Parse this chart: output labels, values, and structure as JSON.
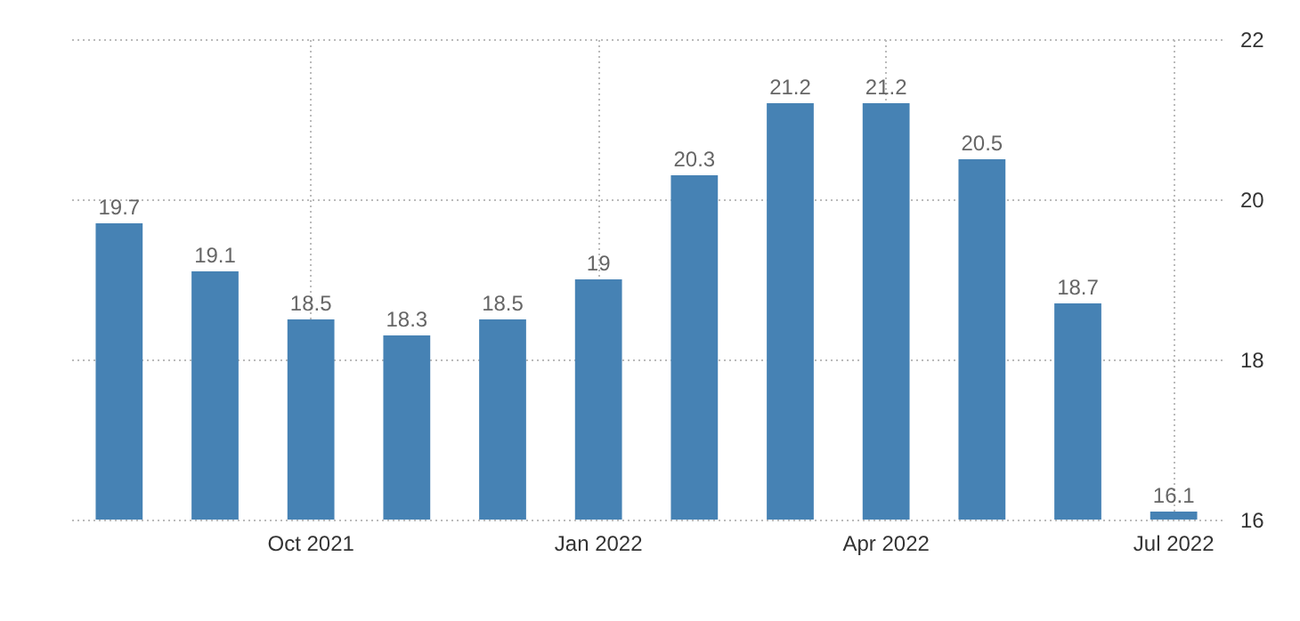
{
  "chart_data": {
    "type": "bar",
    "categories": [
      null,
      null,
      "Oct 2021",
      null,
      null,
      "Jan 2022",
      null,
      null,
      "Apr 2022",
      null,
      null,
      "Jul 2022"
    ],
    "values": [
      19.7,
      19.1,
      18.5,
      18.3,
      18.5,
      19,
      20.3,
      21.2,
      21.2,
      20.5,
      18.7,
      16.1
    ],
    "color": "#4682b4",
    "ylim": [
      16,
      22
    ],
    "yticks": [
      16,
      18,
      20,
      22
    ],
    "grid": true,
    "data_labels": true
  }
}
